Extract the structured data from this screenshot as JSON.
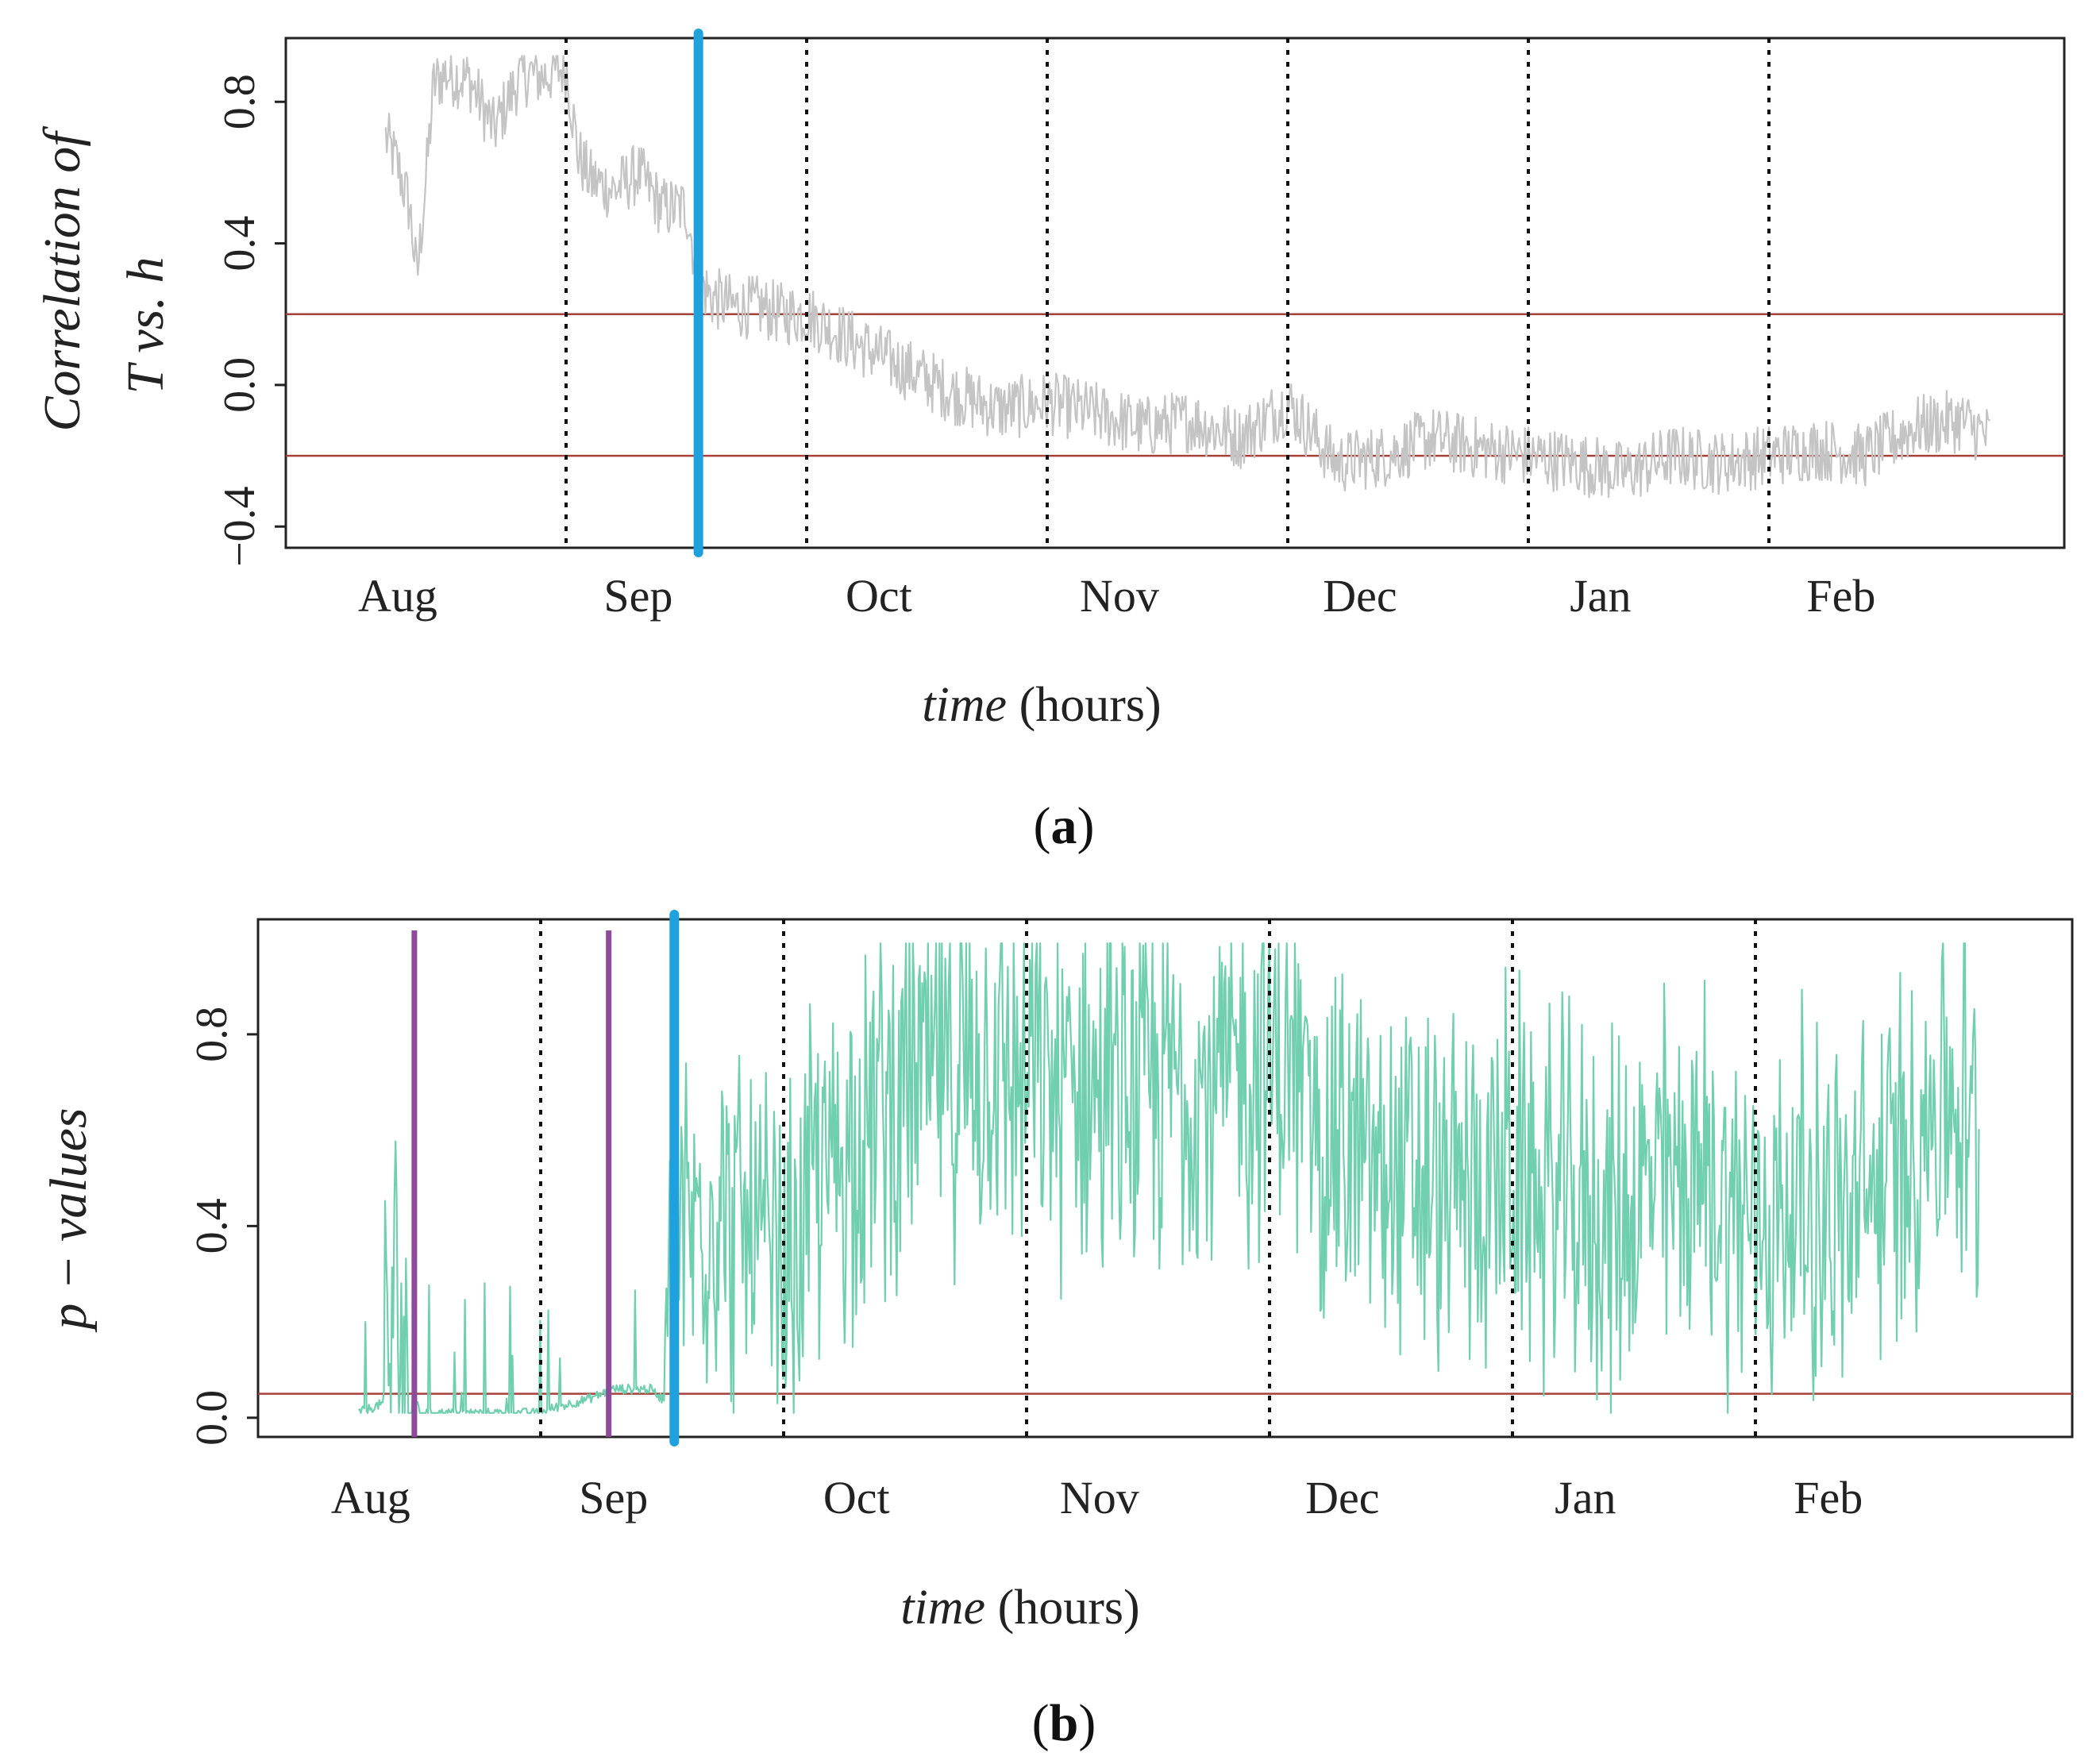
{
  "chart_data": [
    {
      "panel_label": "a",
      "type": "line",
      "title": "",
      "xlabel": {
        "italic": "time",
        "plain": "(hours)"
      },
      "ylabel": {
        "line1": "Correlation of",
        "line2": "T vs. h"
      },
      "month_labels": [
        "Aug",
        "Sep",
        "Oct",
        "Nov",
        "Dec",
        "Jan",
        "Feb"
      ],
      "xlim": [
        0,
        7
      ],
      "ylim": [
        -0.46,
        0.98
      ],
      "y_ticks": [
        -0.4,
        0.0,
        0.4,
        0.8
      ],
      "y_tick_labels": [
        "−0.4",
        "0.0",
        "0.4",
        "0.8"
      ],
      "month_boundaries": [
        1.0,
        2.0,
        3.0,
        4.0,
        5.0,
        6.0
      ],
      "change_point_blue": 1.55,
      "change_points_purple": [],
      "threshold_lines": [
        0.2,
        -0.2
      ],
      "series": [
        {
          "name": "correlation",
          "color": "#c4c4c4",
          "x": [
            0.25,
            0.3,
            0.35,
            0.38,
            0.42,
            0.45,
            0.5,
            0.55,
            0.6,
            0.7,
            0.8,
            0.85,
            0.9,
            1.0,
            1.05,
            1.1,
            1.2,
            1.3,
            1.4,
            1.5,
            1.55,
            1.6,
            1.7,
            1.8,
            1.9,
            2.0,
            2.2,
            2.4,
            2.6,
            2.8,
            3.0,
            3.2,
            3.4,
            3.6,
            3.8,
            4.0,
            4.2,
            4.4,
            4.6,
            4.8,
            5.0,
            5.2,
            5.4,
            5.6,
            5.8,
            6.0,
            6.2,
            6.4,
            6.6,
            6.8,
            6.92
          ],
          "values": [
            0.7,
            0.62,
            0.5,
            0.3,
            0.6,
            0.85,
            0.88,
            0.87,
            0.86,
            0.72,
            0.86,
            0.88,
            0.87,
            0.9,
            0.65,
            0.58,
            0.55,
            0.6,
            0.5,
            0.5,
            0.3,
            0.25,
            0.22,
            0.22,
            0.2,
            0.2,
            0.12,
            0.05,
            -0.02,
            -0.07,
            -0.05,
            -0.08,
            -0.12,
            -0.1,
            -0.15,
            -0.05,
            -0.22,
            -0.2,
            -0.15,
            -0.18,
            -0.2,
            -0.22,
            -0.25,
            -0.2,
            -0.22,
            -0.2,
            -0.18,
            -0.2,
            -0.12,
            -0.1,
            -0.15
          ],
          "noise_amplitude": 0.09
        }
      ]
    },
    {
      "panel_label": "b",
      "type": "line",
      "title": "",
      "xlabel": {
        "italic": "time",
        "plain": "(hours)"
      },
      "ylabel": {
        "line1": "p − values",
        "line2": ""
      },
      "month_labels": [
        "Aug",
        "Sep",
        "Oct",
        "Nov",
        "Dec",
        "Jan",
        "Feb"
      ],
      "xlim": [
        0,
        7
      ],
      "ylim": [
        -0.04,
        1.04
      ],
      "y_ticks": [
        0.0,
        0.4,
        0.8
      ],
      "y_tick_labels": [
        "0.0",
        "0.4",
        "0.8"
      ],
      "month_boundaries": [
        1.0,
        2.0,
        3.0,
        4.0,
        5.0,
        6.0
      ],
      "change_point_blue": 1.55,
      "change_points_purple": [
        0.48,
        1.28
      ],
      "threshold_lines": [
        0.05
      ],
      "series": [
        {
          "name": "p-values",
          "color": "#6fcfae",
          "x": [
            0.25,
            0.35,
            0.4,
            0.45,
            0.5,
            0.6,
            0.8,
            1.0,
            1.05,
            1.2,
            1.3,
            1.45,
            1.5,
            1.55,
            1.6,
            1.7,
            1.8,
            1.9,
            2.0,
            2.1,
            2.3,
            2.5,
            2.7,
            2.9,
            3.0,
            3.2,
            3.4,
            3.6,
            3.8,
            4.0,
            4.1,
            4.3,
            4.5,
            4.7,
            4.9,
            5.0,
            5.2,
            5.4,
            5.6,
            5.8,
            6.0,
            6.2,
            6.4,
            6.6,
            6.8,
            6.92
          ],
          "values": [
            0.0,
            0.02,
            0.25,
            0.1,
            0.0,
            0.0,
            0.0,
            0.0,
            0.01,
            0.03,
            0.05,
            0.05,
            0.03,
            0.3,
            0.4,
            0.45,
            0.4,
            0.35,
            0.25,
            0.45,
            0.6,
            0.7,
            0.72,
            0.75,
            0.7,
            0.7,
            0.65,
            0.7,
            0.7,
            0.75,
            0.7,
            0.55,
            0.5,
            0.45,
            0.5,
            0.5,
            0.45,
            0.4,
            0.5,
            0.5,
            0.4,
            0.45,
            0.4,
            0.55,
            0.7,
            0.55
          ],
          "noise_amplitude": 0.3
        }
      ]
    }
  ]
}
